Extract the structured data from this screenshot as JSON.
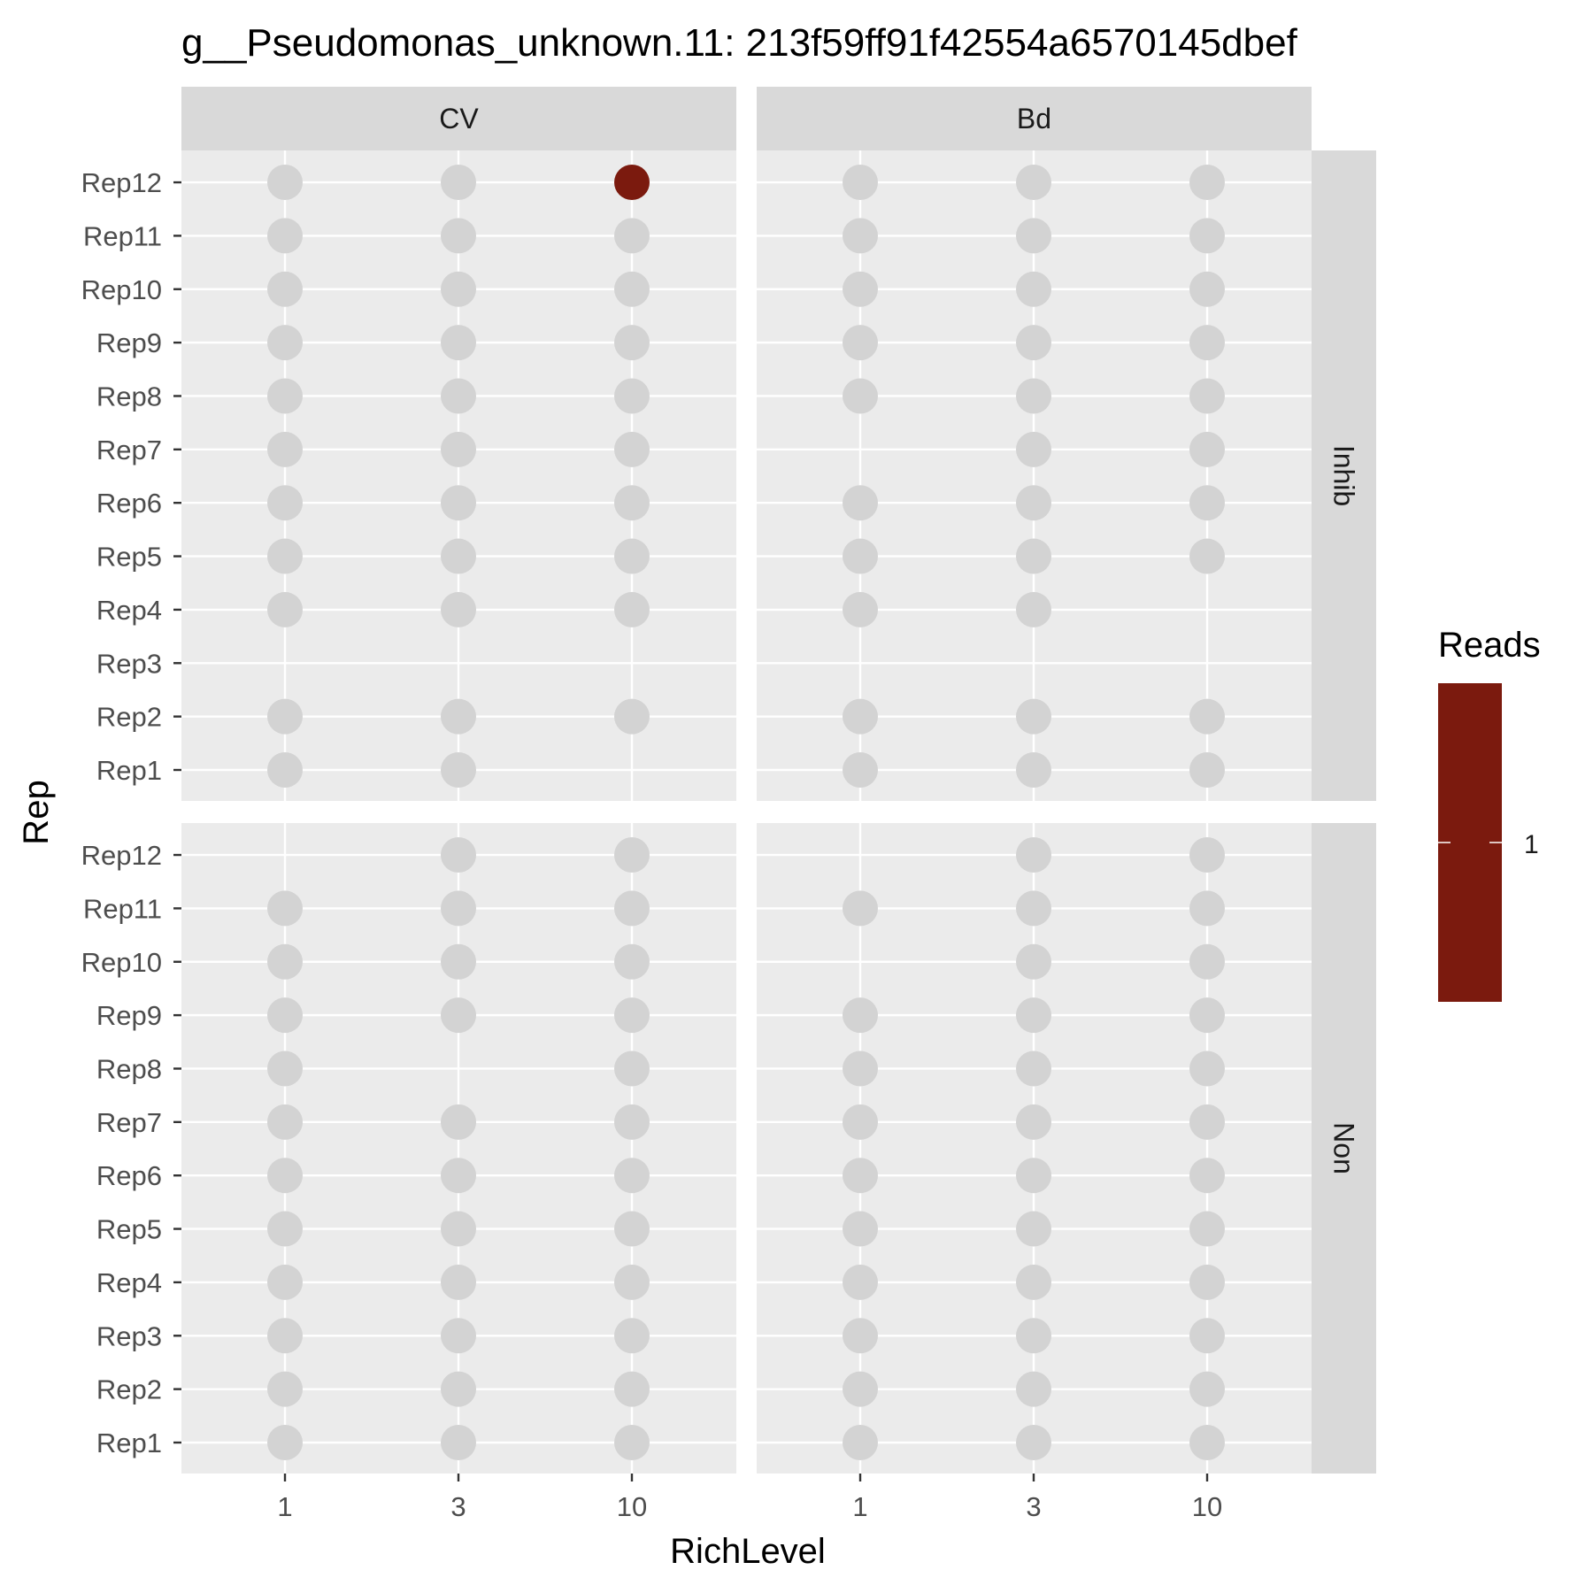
{
  "chart_data": {
    "type": "scatter",
    "title": "g__Pseudomonas_unknown.11: 213f59ff91f42554a6570145dbef",
    "xlabel": "RichLevel",
    "ylabel": "Rep",
    "x_categories": [
      "1",
      "3",
      "10"
    ],
    "y_categories": [
      "Rep1",
      "Rep2",
      "Rep3",
      "Rep4",
      "Rep5",
      "Rep6",
      "Rep7",
      "Rep8",
      "Rep9",
      "Rep10",
      "Rep11",
      "Rep12"
    ],
    "column_facets": [
      "CV",
      "Bd"
    ],
    "row_facets": [
      "Inhib",
      "Non"
    ],
    "legend": {
      "title": "Reads",
      "position": "right",
      "ticks": [
        1
      ],
      "color": "#7b1a0e"
    },
    "colors": {
      "zero_point": "#d3d3d3",
      "reads_point": "#7b1a0e",
      "panel_bg": "#ebebeb",
      "strip_bg": "#d9d9d9",
      "grid": "#ffffff"
    },
    "grid": true,
    "panels": [
      {
        "col": "CV",
        "row": "Inhib",
        "points": {
          "1": [
            "Rep1",
            "Rep2",
            "Rep4",
            "Rep5",
            "Rep6",
            "Rep7",
            "Rep8",
            "Rep9",
            "Rep10",
            "Rep11",
            "Rep12"
          ],
          "3": [
            "Rep1",
            "Rep2",
            "Rep4",
            "Rep5",
            "Rep6",
            "Rep7",
            "Rep8",
            "Rep9",
            "Rep10",
            "Rep11",
            "Rep12"
          ],
          "10": [
            "Rep2",
            "Rep4",
            "Rep5",
            "Rep6",
            "Rep7",
            "Rep8",
            "Rep9",
            "Rep10",
            "Rep11",
            "Rep12"
          ]
        },
        "highlighted": [
          {
            "x": "10",
            "y": "Rep12",
            "reads": 1
          }
        ]
      },
      {
        "col": "Bd",
        "row": "Inhib",
        "points": {
          "1": [
            "Rep1",
            "Rep2",
            "Rep4",
            "Rep5",
            "Rep6",
            "Rep8",
            "Rep9",
            "Rep10",
            "Rep11",
            "Rep12"
          ],
          "3": [
            "Rep1",
            "Rep2",
            "Rep4",
            "Rep5",
            "Rep6",
            "Rep7",
            "Rep8",
            "Rep9",
            "Rep10",
            "Rep11",
            "Rep12"
          ],
          "10": [
            "Rep1",
            "Rep2",
            "Rep5",
            "Rep6",
            "Rep7",
            "Rep8",
            "Rep9",
            "Rep10",
            "Rep11",
            "Rep12"
          ]
        },
        "highlighted": []
      },
      {
        "col": "CV",
        "row": "Non",
        "points": {
          "1": [
            "Rep1",
            "Rep2",
            "Rep3",
            "Rep4",
            "Rep5",
            "Rep6",
            "Rep7",
            "Rep8",
            "Rep9",
            "Rep10",
            "Rep11"
          ],
          "3": [
            "Rep1",
            "Rep2",
            "Rep3",
            "Rep4",
            "Rep5",
            "Rep6",
            "Rep7",
            "Rep9",
            "Rep10",
            "Rep11",
            "Rep12"
          ],
          "10": [
            "Rep1",
            "Rep2",
            "Rep3",
            "Rep4",
            "Rep5",
            "Rep6",
            "Rep7",
            "Rep8",
            "Rep9",
            "Rep10",
            "Rep11",
            "Rep12"
          ]
        },
        "highlighted": []
      },
      {
        "col": "Bd",
        "row": "Non",
        "points": {
          "1": [
            "Rep1",
            "Rep2",
            "Rep3",
            "Rep4",
            "Rep5",
            "Rep6",
            "Rep7",
            "Rep8",
            "Rep9",
            "Rep11"
          ],
          "3": [
            "Rep1",
            "Rep2",
            "Rep3",
            "Rep4",
            "Rep5",
            "Rep6",
            "Rep7",
            "Rep8",
            "Rep9",
            "Rep10",
            "Rep11",
            "Rep12"
          ],
          "10": [
            "Rep1",
            "Rep2",
            "Rep3",
            "Rep4",
            "Rep5",
            "Rep6",
            "Rep7",
            "Rep8",
            "Rep9",
            "Rep10",
            "Rep11",
            "Rep12"
          ]
        },
        "highlighted": []
      }
    ]
  }
}
